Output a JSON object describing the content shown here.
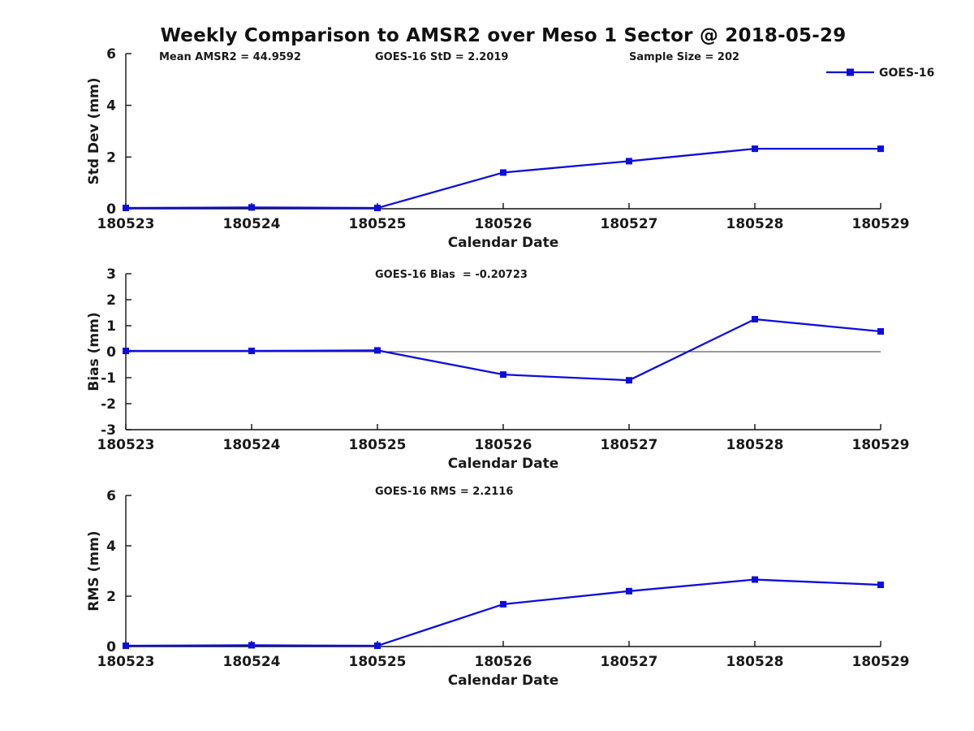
{
  "figure_title": "Weekly Comparison to AMSR2 over Meso 1 Sector @ 2018-05-29",
  "colors": {
    "line": "#0d0ddd",
    "text": "#1a1a1a",
    "axis": "#111111",
    "zero_line": "#333333"
  },
  "chart_data": [
    {
      "type": "line",
      "ylabel": "Std Dev (mm)",
      "xlabel": "Calendar Date",
      "categories": [
        "180523",
        "180524",
        "180525",
        "180526",
        "180527",
        "180528",
        "180529"
      ],
      "series": [
        {
          "name": "GOES-16",
          "values": [
            0.03,
            0.05,
            0.03,
            1.4,
            1.84,
            2.32,
            2.32
          ]
        }
      ],
      "ylim": [
        0,
        6
      ],
      "yticks": [
        "0",
        "2",
        "4",
        "6"
      ],
      "annotations": [
        "Mean AMSR2 = 44.9592",
        "GOES-16 StD = 2.2019",
        "Sample Size = 202"
      ],
      "legend": {
        "entries": [
          "GOES-16"
        ],
        "position": "top-right"
      },
      "grid": "off",
      "zero_line": false
    },
    {
      "type": "line",
      "ylabel": "Bias (mm)",
      "xlabel": "Calendar Date",
      "categories": [
        "180523",
        "180524",
        "180525",
        "180526",
        "180527",
        "180528",
        "180529"
      ],
      "series": [
        {
          "name": "GOES-16",
          "values": [
            0.03,
            0.03,
            0.05,
            -0.88,
            -1.1,
            1.25,
            0.78
          ]
        }
      ],
      "ylim": [
        -3,
        3
      ],
      "yticks": [
        "-3",
        "-2",
        "-1",
        "0",
        "1",
        "2",
        "3"
      ],
      "annotations": [
        "GOES-16 Bias  = -0.20723"
      ],
      "legend": null,
      "grid": "off",
      "zero_line": true
    },
    {
      "type": "line",
      "ylabel": "RMS (mm)",
      "xlabel": "Calendar Date",
      "categories": [
        "180523",
        "180524",
        "180525",
        "180526",
        "180527",
        "180528",
        "180529"
      ],
      "series": [
        {
          "name": "GOES-16",
          "values": [
            0.03,
            0.05,
            0.03,
            1.68,
            2.2,
            2.66,
            2.45
          ]
        }
      ],
      "ylim": [
        0,
        6
      ],
      "yticks": [
        "0",
        "2",
        "4",
        "6"
      ],
      "annotations": [
        "GOES-16 RMS = 2.2116"
      ],
      "legend": null,
      "grid": "off",
      "zero_line": false
    }
  ]
}
